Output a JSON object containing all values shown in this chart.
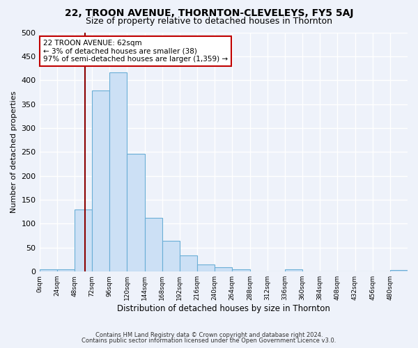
{
  "title1": "22, TROON AVENUE, THORNTON-CLEVELEYS, FY5 5AJ",
  "title2": "Size of property relative to detached houses in Thornton",
  "xlabel": "Distribution of detached houses by size in Thornton",
  "ylabel": "Number of detached properties",
  "bar_values": [
    4,
    5,
    130,
    378,
    416,
    246,
    112,
    64,
    34,
    15,
    9,
    5,
    1,
    0,
    4,
    0,
    0,
    0,
    0,
    0,
    3
  ],
  "bin_edges": [
    0,
    24,
    48,
    72,
    96,
    120,
    144,
    168,
    192,
    216,
    240,
    264,
    288,
    312,
    336,
    360,
    384,
    408,
    432,
    456,
    480,
    504
  ],
  "bar_color": "#cce0f5",
  "bar_edge_color": "#6aaed6",
  "vline_x": 62,
  "vline_color": "#8b0000",
  "annotation_text": "22 TROON AVENUE: 62sqm\n← 3% of detached houses are smaller (38)\n97% of semi-detached houses are larger (1,359) →",
  "annotation_box_color": "#ffffff",
  "annotation_box_edge": "#c00000",
  "footer1": "Contains HM Land Registry data © Crown copyright and database right 2024.",
  "footer2": "Contains public sector information licensed under the Open Government Licence v3.0.",
  "ylim": [
    0,
    500
  ],
  "bg_color": "#eef2fa",
  "plot_bg_color": "#eef2fa",
  "grid_color": "#ffffff",
  "title1_fontsize": 10,
  "title2_fontsize": 9,
  "tick_labels": [
    "0sqm",
    "24sqm",
    "48sqm",
    "72sqm",
    "96sqm",
    "120sqm",
    "144sqm",
    "168sqm",
    "192sqm",
    "216sqm",
    "240sqm",
    "264sqm",
    "288sqm",
    "312sqm",
    "336sqm",
    "360sqm",
    "384sqm",
    "408sqm",
    "432sqm",
    "456sqm",
    "480sqm"
  ],
  "yticks": [
    0,
    50,
    100,
    150,
    200,
    250,
    300,
    350,
    400,
    450,
    500
  ]
}
